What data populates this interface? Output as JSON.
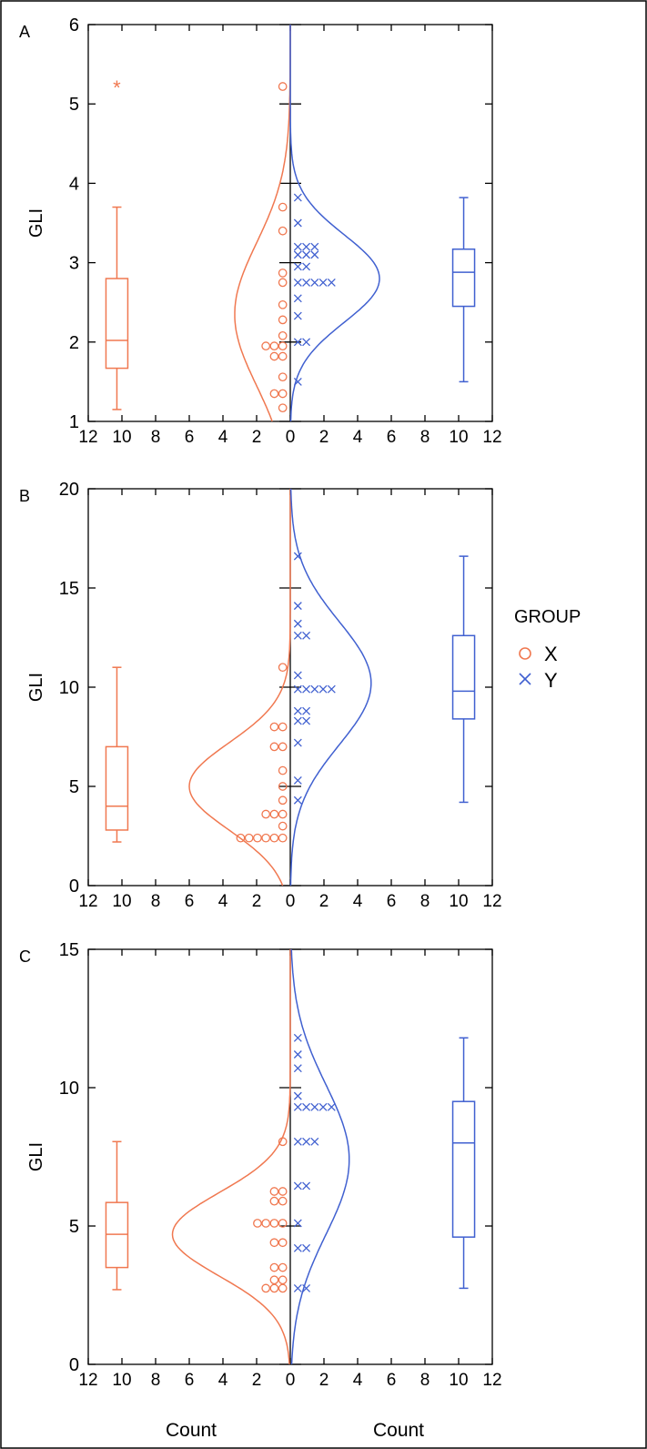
{
  "legend": {
    "title": "GROUP",
    "entries": [
      {
        "label": "X",
        "color": "#f07850",
        "marker": "circle"
      },
      {
        "label": "Y",
        "color": "#4060d0",
        "marker": "cross"
      }
    ]
  },
  "bottom_labels": {
    "left": "Count",
    "right": "Count"
  },
  "chart_data": [
    {
      "panel": "A",
      "type": "scatter",
      "ylabel": "GLI",
      "ylim": [
        1,
        6
      ],
      "yticks": [
        1,
        2,
        3,
        4,
        5,
        6
      ],
      "xlim": [
        -12,
        12
      ],
      "xtick_labels": [
        "12",
        "10",
        "8",
        "6",
        "4",
        "2",
        "0",
        "2",
        "4",
        "6",
        "8",
        "10",
        "12"
      ],
      "series": [
        {
          "name": "X",
          "color": "#f07850",
          "dot_points": [
            {
              "y": 5.22,
              "count": 1
            },
            {
              "y": 3.7,
              "count": 1
            },
            {
              "y": 3.4,
              "count": 1
            },
            {
              "y": 2.87,
              "count": 1
            },
            {
              "y": 2.75,
              "count": 1
            },
            {
              "y": 2.47,
              "count": 1
            },
            {
              "y": 2.28,
              "count": 1
            },
            {
              "y": 2.08,
              "count": 1
            },
            {
              "y": 1.95,
              "count": 3
            },
            {
              "y": 1.82,
              "count": 2
            },
            {
              "y": 1.56,
              "count": 1
            },
            {
              "y": 1.35,
              "count": 2
            },
            {
              "y": 1.17,
              "count": 1
            }
          ],
          "normal_curve": {
            "mean": 2.35,
            "sd": 0.9,
            "peak_count": 3.3
          },
          "box": {
            "min": 1.15,
            "q1": 1.67,
            "median": 2.02,
            "q3": 2.8,
            "max": 3.7,
            "outliers": [
              5.22
            ]
          }
        },
        {
          "name": "Y",
          "color": "#4060d0",
          "dot_points": [
            {
              "y": 3.82,
              "count": 1
            },
            {
              "y": 3.5,
              "count": 1
            },
            {
              "y": 3.2,
              "count": 3
            },
            {
              "y": 3.1,
              "count": 3
            },
            {
              "y": 2.95,
              "count": 2
            },
            {
              "y": 2.75,
              "count": 5
            },
            {
              "y": 2.55,
              "count": 1
            },
            {
              "y": 2.33,
              "count": 1
            },
            {
              "y": 2.0,
              "count": 2
            },
            {
              "y": 1.5,
              "count": 1
            }
          ],
          "normal_curve": {
            "mean": 2.8,
            "sd": 0.55,
            "peak_count": 5.3
          },
          "box": {
            "min": 1.5,
            "q1": 2.45,
            "median": 2.88,
            "q3": 3.17,
            "max": 3.82,
            "outliers": []
          }
        }
      ]
    },
    {
      "panel": "B",
      "type": "scatter",
      "ylabel": "GLI",
      "ylim": [
        0,
        20
      ],
      "yticks": [
        0,
        5,
        10,
        15,
        20
      ],
      "xlim": [
        -12,
        12
      ],
      "xtick_labels": [
        "12",
        "10",
        "8",
        "6",
        "4",
        "2",
        "0",
        "2",
        "4",
        "6",
        "8",
        "10",
        "12"
      ],
      "series": [
        {
          "name": "X",
          "color": "#f07850",
          "dot_points": [
            {
              "y": 11.0,
              "count": 1
            },
            {
              "y": 8.0,
              "count": 2
            },
            {
              "y": 7.0,
              "count": 2
            },
            {
              "y": 5.8,
              "count": 1
            },
            {
              "y": 5.0,
              "count": 1
            },
            {
              "y": 4.3,
              "count": 1
            },
            {
              "y": 3.6,
              "count": 3
            },
            {
              "y": 3.0,
              "count": 1
            },
            {
              "y": 2.4,
              "count": 6
            }
          ],
          "normal_curve": {
            "mean": 5.0,
            "sd": 2.2,
            "peak_count": 6.0
          },
          "box": {
            "min": 2.2,
            "q1": 2.8,
            "median": 4.0,
            "q3": 7.0,
            "max": 11.0,
            "outliers": []
          }
        },
        {
          "name": "Y",
          "color": "#4060d0",
          "dot_points": [
            {
              "y": 16.6,
              "count": 1
            },
            {
              "y": 14.1,
              "count": 1
            },
            {
              "y": 13.2,
              "count": 1
            },
            {
              "y": 12.6,
              "count": 2
            },
            {
              "y": 10.6,
              "count": 1
            },
            {
              "y": 9.9,
              "count": 5
            },
            {
              "y": 8.8,
              "count": 2
            },
            {
              "y": 8.3,
              "count": 2
            },
            {
              "y": 7.2,
              "count": 1
            },
            {
              "y": 5.3,
              "count": 1
            },
            {
              "y": 4.3,
              "count": 1
            }
          ],
          "normal_curve": {
            "mean": 10.2,
            "sd": 3.1,
            "peak_count": 4.8
          },
          "box": {
            "min": 4.2,
            "q1": 8.4,
            "median": 9.8,
            "q3": 12.6,
            "max": 16.6,
            "outliers": []
          }
        }
      ]
    },
    {
      "panel": "C",
      "type": "scatter",
      "ylabel": "GLI",
      "xlabel": "Count",
      "ylim": [
        0,
        15
      ],
      "yticks": [
        0,
        5,
        10,
        15
      ],
      "xlim": [
        -12,
        12
      ],
      "xtick_labels": [
        "12",
        "10",
        "8",
        "6",
        "4",
        "2",
        "0",
        "2",
        "4",
        "6",
        "8",
        "10",
        "12"
      ],
      "series": [
        {
          "name": "X",
          "color": "#f07850",
          "dot_points": [
            {
              "y": 8.05,
              "count": 1
            },
            {
              "y": 6.25,
              "count": 2
            },
            {
              "y": 5.9,
              "count": 2
            },
            {
              "y": 5.1,
              "count": 4
            },
            {
              "y": 4.4,
              "count": 2
            },
            {
              "y": 3.5,
              "count": 2
            },
            {
              "y": 3.05,
              "count": 2
            },
            {
              "y": 2.75,
              "count": 3
            }
          ],
          "normal_curve": {
            "mean": 4.7,
            "sd": 1.5,
            "peak_count": 7.0
          },
          "box": {
            "min": 2.7,
            "q1": 3.5,
            "median": 4.7,
            "q3": 5.85,
            "max": 8.05,
            "outliers": []
          }
        },
        {
          "name": "Y",
          "color": "#4060d0",
          "dot_points": [
            {
              "y": 11.8,
              "count": 1
            },
            {
              "y": 11.2,
              "count": 1
            },
            {
              "y": 10.7,
              "count": 1
            },
            {
              "y": 9.7,
              "count": 1
            },
            {
              "y": 9.3,
              "count": 5
            },
            {
              "y": 8.05,
              "count": 3
            },
            {
              "y": 6.45,
              "count": 2
            },
            {
              "y": 5.1,
              "count": 1
            },
            {
              "y": 4.2,
              "count": 2
            },
            {
              "y": 2.75,
              "count": 2
            }
          ],
          "normal_curve": {
            "mean": 7.4,
            "sd": 2.7,
            "peak_count": 3.5
          },
          "box": {
            "min": 2.75,
            "q1": 4.6,
            "median": 8.0,
            "q3": 9.5,
            "max": 11.8,
            "outliers": []
          }
        }
      ]
    }
  ]
}
